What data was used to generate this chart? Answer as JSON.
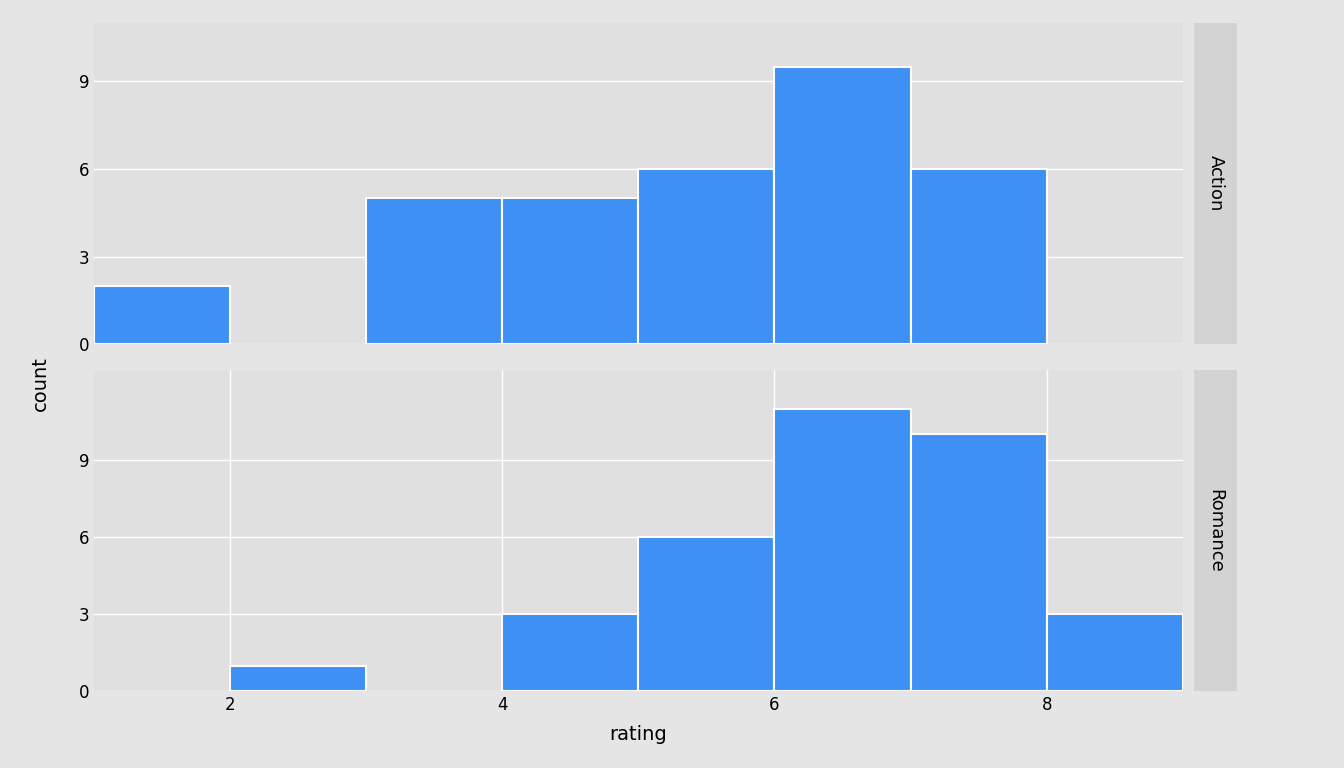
{
  "action_bin_edges": [
    1.0,
    2.0,
    3.0,
    4.0,
    5.0,
    6.0,
    7.0,
    8.0,
    9.0
  ],
  "action_counts": [
    2,
    0,
    5,
    5,
    6,
    9.5,
    6,
    0
  ],
  "romance_bin_edges": [
    1.0,
    2.0,
    3.0,
    4.0,
    5.0,
    6.0,
    7.0,
    8.0,
    9.0
  ],
  "romance_counts": [
    0,
    1,
    0,
    3,
    6,
    11,
    10,
    3
  ],
  "bar_color": "#3e90f5",
  "bar_edgecolor": "white",
  "bg_outer": "#e5e5e5",
  "bg_inner": "#e0e0e0",
  "strip_bg": "#d3d3d3",
  "action_label": "Action",
  "romance_label": "Romance",
  "xlabel": "rating",
  "ylabel": "count",
  "yticks": [
    0,
    3,
    6,
    9
  ],
  "xticks": [
    2,
    4,
    6,
    8
  ],
  "xlim": [
    1.0,
    9.0
  ],
  "ylim_action": [
    0,
    11
  ],
  "ylim_romance": [
    0,
    12
  ],
  "title_fontsize": 14,
  "axis_fontsize": 14,
  "tick_fontsize": 12,
  "strip_fontsize": 13
}
